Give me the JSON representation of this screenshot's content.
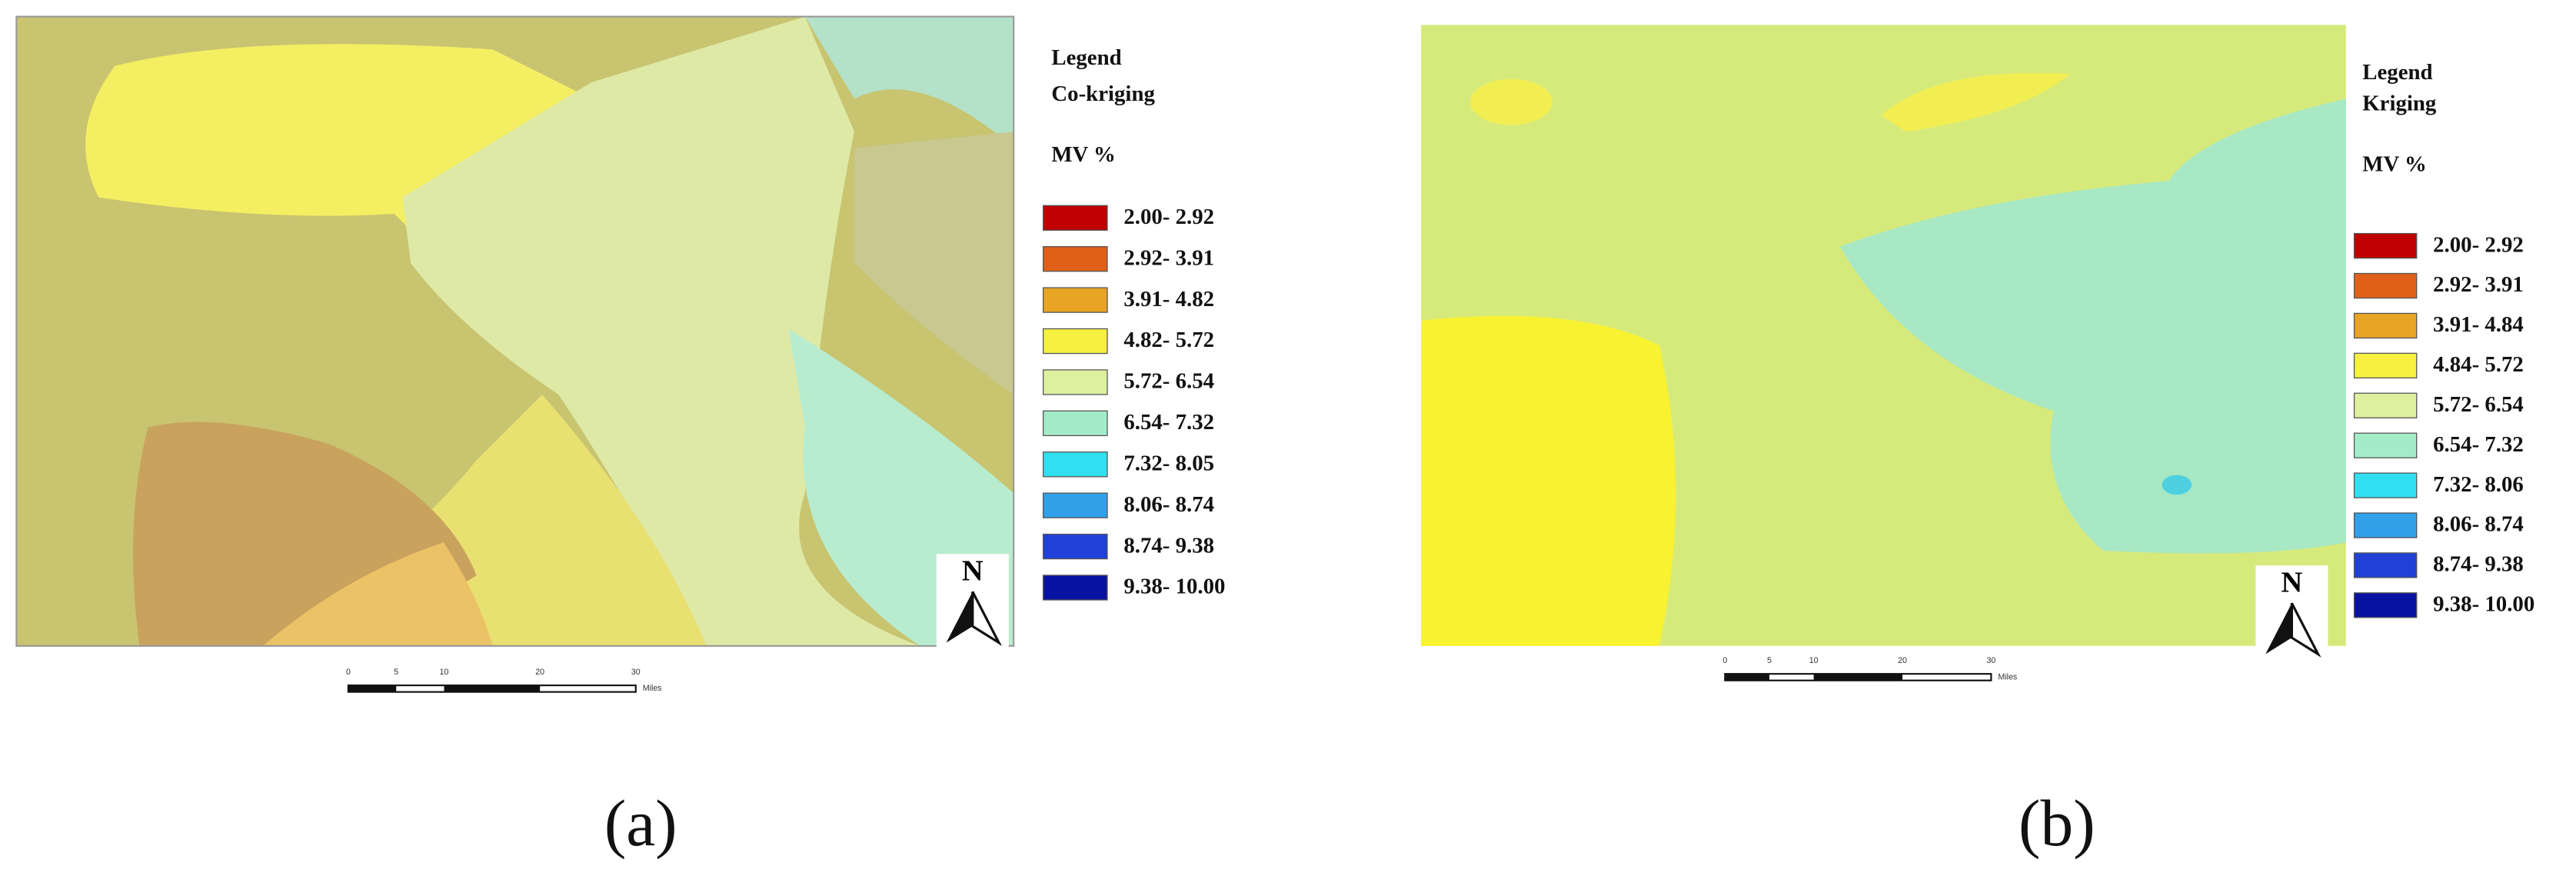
{
  "panels": [
    {
      "legend": {
        "title": "Legend",
        "method": "Co-kriging",
        "unit": "MV %",
        "items": [
          {
            "label": "2.00- 2.92",
            "color": "#c00000"
          },
          {
            "label": "2.92- 3.91",
            "color": "#e0601a"
          },
          {
            "label": "3.91- 4.82",
            "color": "#e8a424"
          },
          {
            "label": "4.82- 5.72",
            "color": "#f6f040"
          },
          {
            "label": "5.72- 6.54",
            "color": "#dcf0a0"
          },
          {
            "label": "6.54- 7.32",
            "color": "#a4ecc8"
          },
          {
            "label": "7.32- 8.05",
            "color": "#30e0f0"
          },
          {
            "label": "8.06- 8.74",
            "color": "#30a0e8"
          },
          {
            "label": "8.74- 9.38",
            "color": "#2040d8"
          },
          {
            "label": "9.38- 10.00",
            "color": "#0812a0"
          }
        ]
      },
      "north": "N",
      "scale": [
        "0",
        "5",
        "10",
        "20",
        "30",
        "Miles"
      ],
      "caption": "(a)"
    },
    {
      "legend": {
        "title": "Legend",
        "method": "Kriging",
        "unit": "MV %",
        "items": [
          {
            "label": "2.00- 2.92",
            "color": "#c00000"
          },
          {
            "label": "2.92- 3.91",
            "color": "#e0601a"
          },
          {
            "label": "3.91- 4.84",
            "color": "#e8a424"
          },
          {
            "label": "4.84- 5.72",
            "color": "#f6f040"
          },
          {
            "label": "5.72- 6.54",
            "color": "#dcf0a0"
          },
          {
            "label": "6.54- 7.32",
            "color": "#a4ecc8"
          },
          {
            "label": "7.32- 8.06",
            "color": "#30e0f0"
          },
          {
            "label": "8.06- 8.74",
            "color": "#30a0e8"
          },
          {
            "label": "8.74- 9.38",
            "color": "#2040d8"
          },
          {
            "label": "9.38- 10.00",
            "color": "#0812a0"
          }
        ]
      },
      "north": "N",
      "scale": [
        "0",
        "5",
        "10",
        "20",
        "30",
        "Miles"
      ],
      "caption": "(b)"
    }
  ]
}
